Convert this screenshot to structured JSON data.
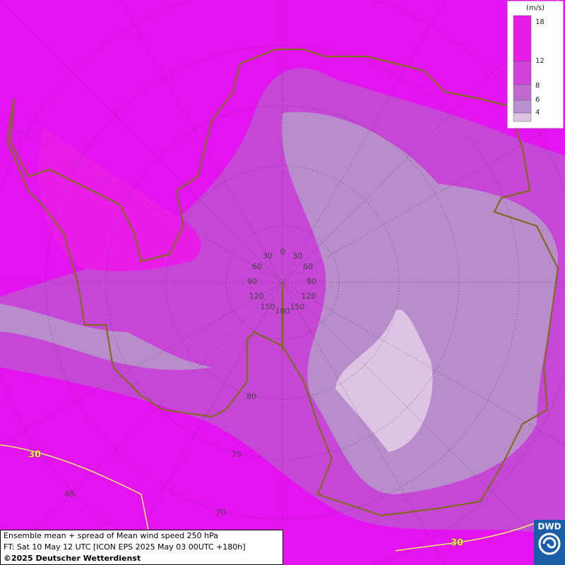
{
  "legend": {
    "unit": "(m/s)",
    "levels": [
      18,
      12,
      8,
      6,
      4
    ],
    "colors": [
      "#e81ee8",
      "#d042d8",
      "#c06ad0",
      "#b890d0",
      "#dcc4e2"
    ]
  },
  "longitude_labels": [
    0,
    30,
    30,
    60,
    60,
    90,
    90,
    120,
    120,
    150,
    150,
    180
  ],
  "latitude_labels": [
    80,
    75,
    70,
    65
  ],
  "contour_labels": [
    30,
    30
  ],
  "footer": {
    "line1": "Ensemble mean + spread of Mean wind speed 250 hPa",
    "line2": "FT: Sat 10 May 12 UTC [ICON EPS 2025 May 03 00UTC +180h]",
    "line3": "©2025 Deutscher Wetterdienst"
  },
  "logo": "DWD"
}
